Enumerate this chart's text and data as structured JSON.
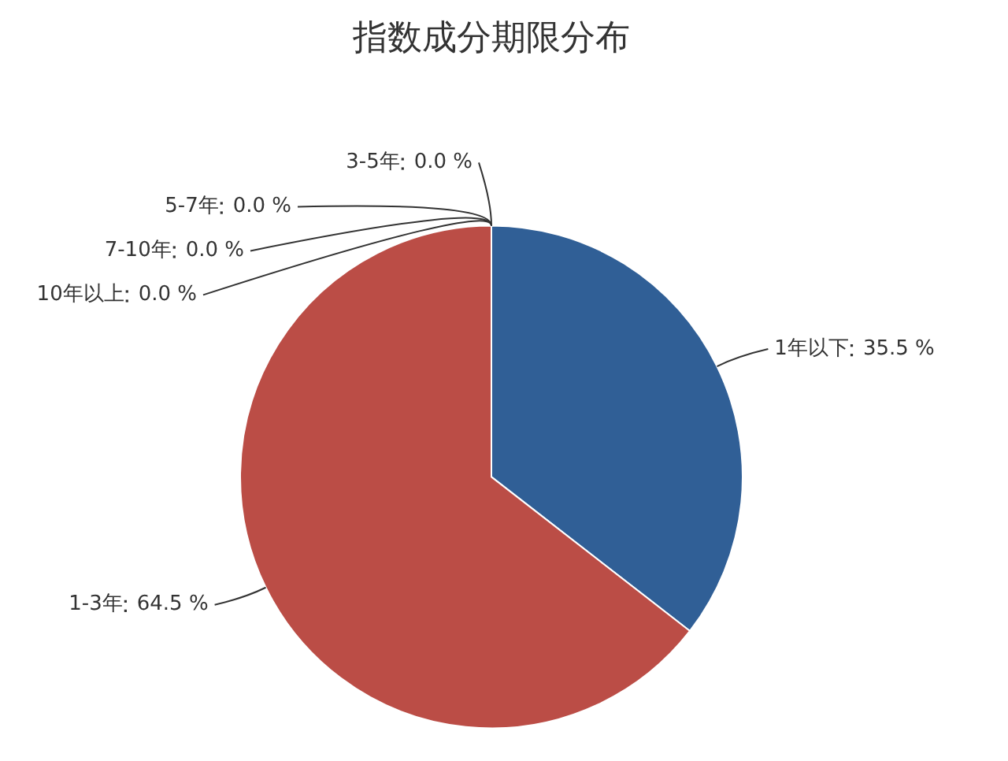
{
  "chart_data": {
    "type": "pie",
    "title": "指数成分期限分布",
    "categories": [
      "1年以下",
      "1-3年",
      "3-5年",
      "5-7年",
      "7-10年",
      "10年以上"
    ],
    "values": [
      35.5,
      64.5,
      0.0,
      0.0,
      0.0,
      0.0
    ],
    "value_labels": [
      "35.5 %",
      "64.5 %",
      "0.0 %",
      "0.0 %",
      "0.0 %",
      "0.0 %"
    ],
    "colors": [
      "#305f96",
      "#bb4d46",
      "#8aa54f",
      "#7a5c9a",
      "#3f9bb3",
      "#e08a3c"
    ]
  }
}
